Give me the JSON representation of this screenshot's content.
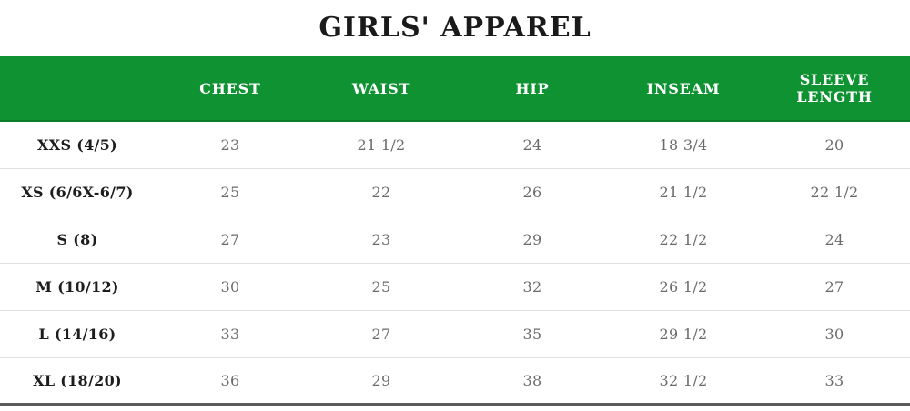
{
  "chart_data": {
    "type": "table",
    "title": "GIRLS' APPAREL",
    "columns": [
      "",
      "CHEST",
      "WAIST",
      "HIP",
      "INSEAM",
      "SLEEVE LENGTH"
    ],
    "rows": [
      {
        "label": "XXS (4/5)",
        "values": [
          "23",
          "21 1/2",
          "24",
          "18 3/4",
          "20"
        ]
      },
      {
        "label": "XS (6/6X-6/7)",
        "values": [
          "25",
          "22",
          "26",
          "21 1/2",
          "22 1/2"
        ]
      },
      {
        "label": "S (8)",
        "values": [
          "27",
          "23",
          "29",
          "22 1/2",
          "24"
        ]
      },
      {
        "label": "M (10/12)",
        "values": [
          "30",
          "25",
          "32",
          "26 1/2",
          "27"
        ]
      },
      {
        "label": "L (14/16)",
        "values": [
          "33",
          "27",
          "35",
          "29 1/2",
          "30"
        ]
      },
      {
        "label": "XL (18/20)",
        "values": [
          "36",
          "29",
          "38",
          "32 1/2",
          "33"
        ]
      }
    ]
  },
  "colors": {
    "header_bg": "#0f9232",
    "header_border": "#0b7c2b",
    "header_text": "#ffffff",
    "title_text": "#1a1a1a",
    "label_text": "#1d1d1d",
    "value_text": "#6b6b6b",
    "row_divider": "#e0e0e0",
    "bottom_bar": "#5c5c5c"
  }
}
